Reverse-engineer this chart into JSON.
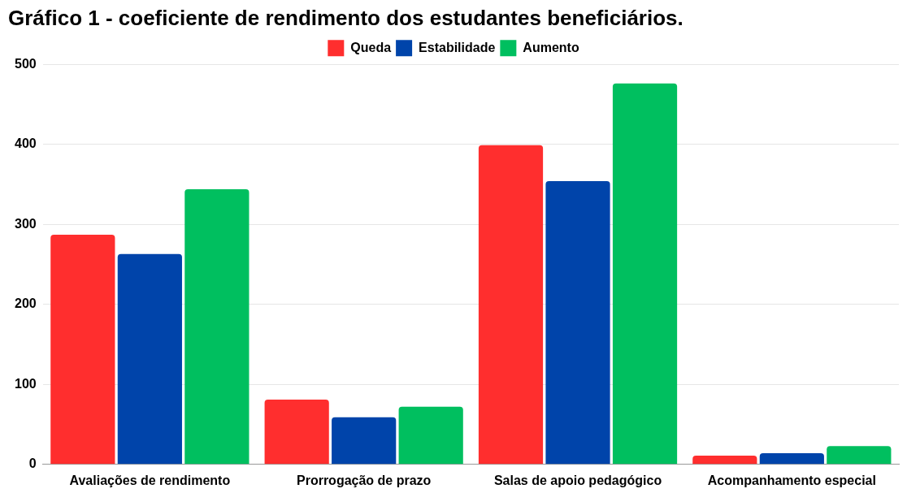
{
  "chart_data": {
    "type": "bar",
    "title": "Gráfico 1 - coeficiente de rendimento dos estudantes beneficiários.",
    "categories": [
      "Avaliações de rendimento",
      "Prorrogação de prazo",
      "Salas de apoio pedagógico",
      "Acompanhamento especial"
    ],
    "series": [
      {
        "name": "Queda",
        "color": "#ff2e2e",
        "values": [
          287,
          81,
          399,
          11
        ]
      },
      {
        "name": "Estabilidade",
        "color": "#0044aa",
        "values": [
          263,
          59,
          354,
          14
        ]
      },
      {
        "name": "Aumento",
        "color": "#00bf5f",
        "values": [
          344,
          72,
          476,
          23
        ]
      }
    ],
    "ylim": [
      0,
      500
    ],
    "yticks": [
      0,
      100,
      200,
      300,
      400,
      500
    ],
    "grid": "y",
    "legend": "top"
  }
}
